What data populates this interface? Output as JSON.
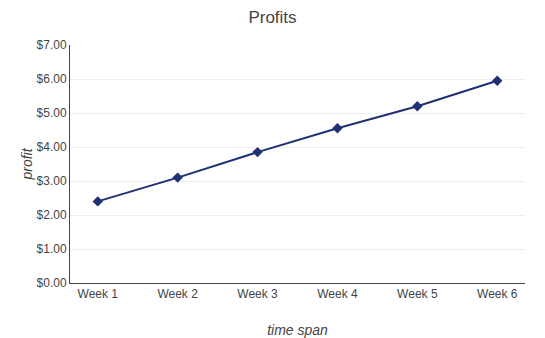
{
  "chart_data": {
    "type": "line",
    "title": "Profits",
    "xlabel": "time span",
    "ylabel": "profit",
    "categories": [
      "Week 1",
      "Week 2",
      "Week 3",
      "Week 4",
      "Week 5",
      "Week 6"
    ],
    "values": [
      2.4,
      3.1,
      3.85,
      4.55,
      5.2,
      5.95
    ],
    "color": "#1F3074",
    "marker": "diamond",
    "ylim": [
      0,
      7.0
    ],
    "yticks": [
      {
        "value": 0.0,
        "label": "$0.00"
      },
      {
        "value": 1.0,
        "label": "$1.00"
      },
      {
        "value": 2.0,
        "label": "$2.00"
      },
      {
        "value": 3.0,
        "label": "$3.00"
      },
      {
        "value": 4.0,
        "label": "$4.00"
      },
      {
        "value": 5.0,
        "label": "$5.00"
      },
      {
        "value": 6.0,
        "label": "$6.00"
      },
      {
        "value": 7.0,
        "label": "$7.00"
      }
    ],
    "grid": true
  }
}
